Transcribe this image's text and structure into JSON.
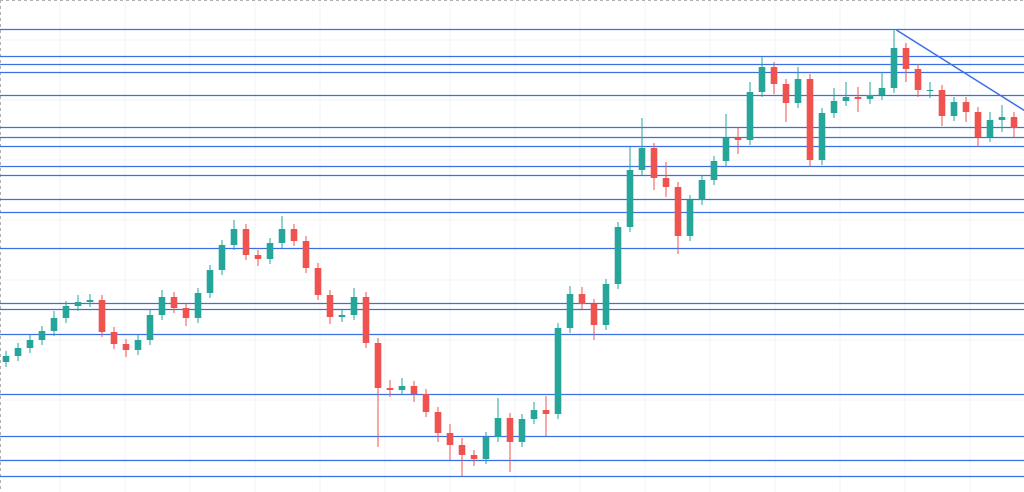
{
  "chart_data": {
    "type": "candlestick",
    "up_color": "#26a69a",
    "down_color": "#ef5350",
    "level_color": "#3b6fe3",
    "xlim": [
      -0.5,
      84.833
    ],
    "ylim": [
      0,
      492
    ],
    "open": [
      130,
      136,
      144,
      152,
      161,
      174,
      186,
      190,
      192,
      160,
      148,
      142,
      152,
      177,
      195,
      184,
      174,
      199,
      222,
      247,
      263,
      237,
      233,
      249,
      263,
      251,
      224,
      197,
      175,
      177,
      195,
      149,
      104,
      102,
      106,
      98,
      80,
      59,
      47,
      37,
      33,
      55,
      74,
      50,
      73,
      82,
      78,
      164,
      198,
      188,
      167,
      208,
      265,
      322,
      344,
      314,
      305,
      256,
      292,
      312,
      331,
      354,
      352,
      400,
      425,
      408,
      389,
      413,
      332,
      379,
      391,
      395,
      393,
      397,
      404,
      444,
      423,
      402,
      402,
      376,
      390,
      380,
      355,
      372,
      375
    ],
    "high": [
      141,
      149,
      157,
      166,
      181,
      191,
      197,
      198,
      197,
      165,
      153,
      157,
      182,
      202,
      200,
      189,
      204,
      227,
      252,
      272,
      268,
      242,
      254,
      276,
      268,
      256,
      229,
      202,
      182,
      204,
      200,
      154,
      112,
      114,
      111,
      103,
      85,
      68,
      54,
      42,
      60,
      94,
      79,
      78,
      90,
      96,
      169,
      206,
      205,
      193,
      213,
      270,
      345,
      374,
      349,
      330,
      310,
      297,
      317,
      336,
      378,
      365,
      410,
      435,
      430,
      413,
      425,
      418,
      384,
      404,
      410,
      405,
      410,
      420,
      462,
      449,
      428,
      410,
      407,
      395,
      395,
      385,
      380,
      387,
      380
    ],
    "low": [
      125,
      131,
      139,
      147,
      156,
      169,
      181,
      185,
      155,
      143,
      135,
      137,
      147,
      172,
      179,
      166,
      169,
      194,
      217,
      242,
      232,
      226,
      228,
      244,
      246,
      219,
      192,
      168,
      170,
      172,
      144,
      45,
      95,
      97,
      90,
      75,
      50,
      32,
      16,
      26,
      28,
      50,
      20,
      45,
      68,
      56,
      73,
      159,
      183,
      152,
      162,
      203,
      260,
      317,
      302,
      295,
      238,
      251,
      287,
      307,
      326,
      338,
      347,
      395,
      398,
      370,
      384,
      325,
      327,
      374,
      386,
      380,
      388,
      392,
      399,
      410,
      395,
      394,
      366,
      371,
      370,
      345,
      350,
      360,
      355
    ],
    "close": [
      136,
      144,
      152,
      161,
      174,
      186,
      190,
      192,
      160,
      148,
      142,
      152,
      177,
      195,
      184,
      174,
      199,
      222,
      247,
      263,
      237,
      233,
      249,
      263,
      251,
      224,
      197,
      175,
      177,
      195,
      149,
      104,
      102,
      106,
      98,
      80,
      59,
      47,
      37,
      33,
      55,
      74,
      50,
      73,
      82,
      78,
      164,
      198,
      188,
      167,
      208,
      265,
      322,
      344,
      314,
      305,
      256,
      292,
      312,
      331,
      354,
      352,
      400,
      425,
      408,
      389,
      413,
      332,
      379,
      391,
      395,
      393,
      397,
      404,
      444,
      423,
      402,
      402,
      376,
      390,
      380,
      355,
      372,
      375,
      364
    ],
    "levels": [
      463,
      436,
      428,
      420,
      397,
      365,
      355,
      346,
      326,
      317,
      293,
      280,
      244,
      189,
      183,
      158,
      98,
      56,
      32,
      16
    ],
    "trendline": {
      "x": [
        74.2,
        85.2
      ],
      "y": [
        462,
        379
      ]
    }
  }
}
